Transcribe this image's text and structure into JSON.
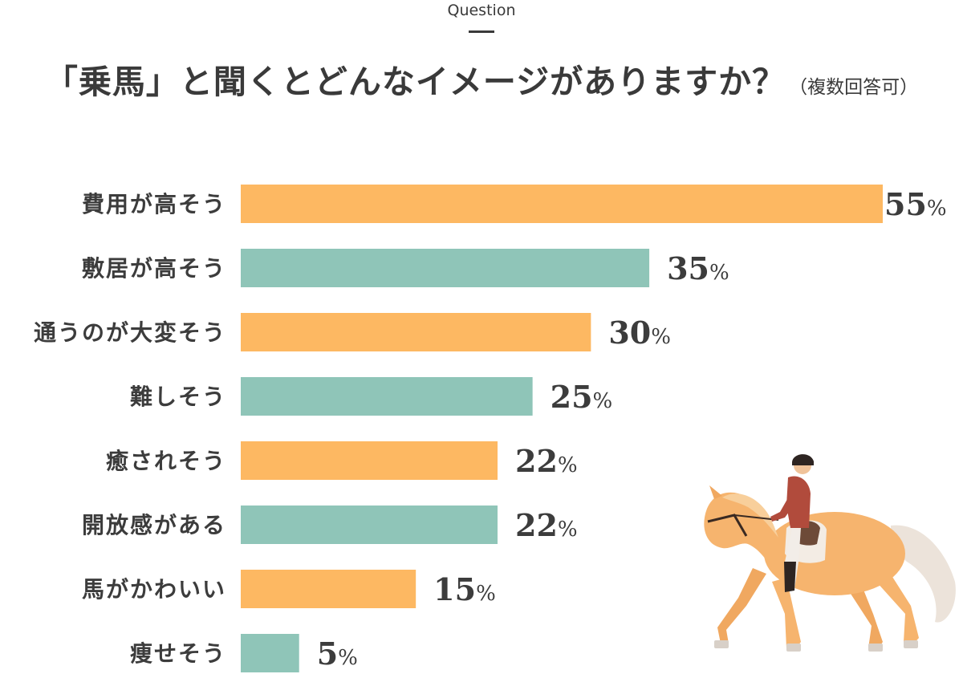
{
  "header": {
    "kicker": "Question",
    "title": "「乗馬」と聞くとどんなイメージがありますか？",
    "note": "（複数回答可）"
  },
  "colors": {
    "orange": "#fdb862",
    "teal": "#8fc5b8",
    "text": "#3c3c3c"
  },
  "illustration": {
    "name": "horse-rider-icon"
  },
  "chart_data": {
    "type": "bar",
    "orientation": "horizontal",
    "categories": [
      "費用が高そう",
      "敷居が高そう",
      "通うのが大変そう",
      "難しそう",
      "癒されそう",
      "開放感がある",
      "馬がかわいい",
      "痩せそう"
    ],
    "values": [
      55,
      35,
      30,
      25,
      22,
      22,
      15,
      5
    ],
    "unit": "%",
    "xlim": [
      0,
      55
    ],
    "bar_colors": [
      "#fdb862",
      "#8fc5b8",
      "#fdb862",
      "#8fc5b8",
      "#fdb862",
      "#8fc5b8",
      "#fdb862",
      "#8fc5b8"
    ],
    "grid": false,
    "legend": "none"
  }
}
